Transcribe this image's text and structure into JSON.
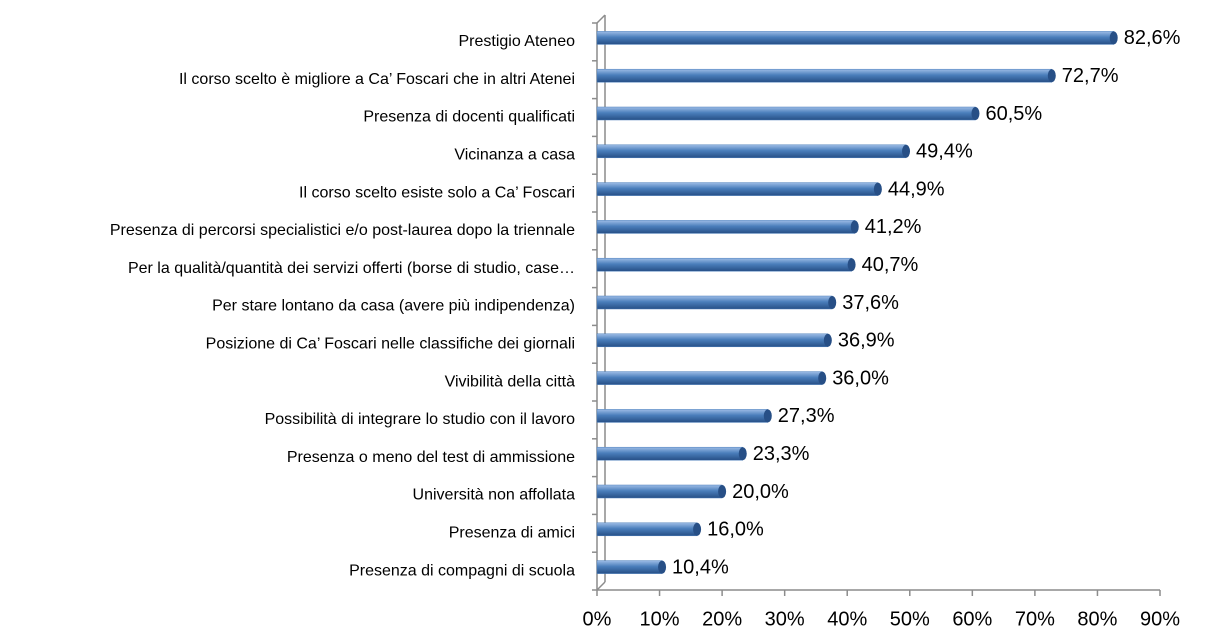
{
  "chart_data": {
    "type": "bar",
    "orientation": "horizontal",
    "categories": [
      "Prestigio Ateneo",
      "Il corso scelto è migliore a Ca’ Foscari che in altri Atenei",
      "Presenza di docenti qualificati",
      "Vicinanza a casa",
      "Il corso scelto esiste solo a Ca’ Foscari",
      "Presenza di percorsi specialistici e/o post-laurea dopo la triennale",
      "Per la qualità/quantità dei servizi offerti (borse di studio, case…",
      "Per stare lontano da casa (avere più indipendenza)",
      "Posizione di Ca’ Foscari nelle classifiche dei giornali",
      "Vivibilità della città",
      "Possibilità di integrare lo studio con il lavoro",
      "Presenza o meno del test di ammissione",
      "Università non affollata",
      "Presenza di amici",
      "Presenza di compagni di scuola"
    ],
    "values": [
      82.6,
      72.7,
      60.5,
      49.4,
      44.9,
      41.2,
      40.7,
      37.6,
      36.9,
      36.0,
      27.3,
      23.3,
      20.0,
      16.0,
      10.4
    ],
    "value_labels": [
      "82,6%",
      "72,7%",
      "60,5%",
      "49,4%",
      "44,9%",
      "41,2%",
      "40,7%",
      "37,6%",
      "36,9%",
      "36,0%",
      "27,3%",
      "23,3%",
      "20,0%",
      "16,0%",
      "10,4%"
    ],
    "color": "#4a7ebb",
    "xlim": [
      0,
      90
    ],
    "xticks": [
      {
        "value": 0,
        "label": "0%"
      },
      {
        "value": 10,
        "label": "10%"
      },
      {
        "value": 20,
        "label": "20%"
      },
      {
        "value": 30,
        "label": "30%"
      },
      {
        "value": 40,
        "label": "40%"
      },
      {
        "value": 50,
        "label": "50%"
      },
      {
        "value": 60,
        "label": "60%"
      },
      {
        "value": 70,
        "label": "70%"
      },
      {
        "value": 80,
        "label": "80%"
      },
      {
        "value": 90,
        "label": "90%"
      }
    ],
    "grid": false
  }
}
